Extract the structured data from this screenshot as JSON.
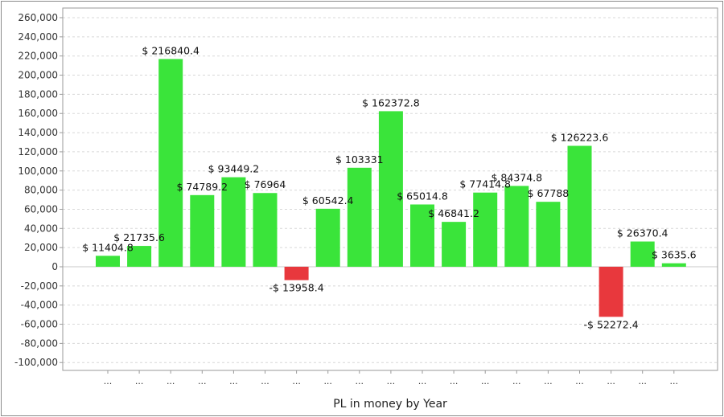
{
  "chart_data": {
    "type": "bar",
    "title": "",
    "xlabel": "PL in money by Year",
    "ylabel": "",
    "ylim": [
      -100000,
      260000
    ],
    "ytick_step": 20000,
    "categories": [
      "...",
      "...",
      "...",
      "...",
      "...",
      "...",
      "...",
      "...",
      "...",
      "...",
      "...",
      "...",
      "...",
      "...",
      "...",
      "...",
      "...",
      "...",
      "..."
    ],
    "values": [
      11404.8,
      21735.6,
      216840.4,
      74789.2,
      93449.2,
      76964,
      -13958.4,
      60542.4,
      103331,
      162372.8,
      65014.8,
      46841.2,
      77414.8,
      84374.8,
      67788,
      126223.6,
      -52272.4,
      26370.4,
      3635.6
    ],
    "value_labels": [
      "$ 11404.8",
      "$ 21735.6",
      "$ 216840.4",
      "$ 74789.2",
      "$ 93449.2",
      "$ 76964",
      "-$ 13958.4",
      "$ 60542.4",
      "$ 103331",
      "$ 162372.8",
      "$ 65014.8",
      "$ 46841.2",
      "$ 77414.8",
      "$ 84374.8",
      "$ 67788",
      "$ 126223.6",
      "-$ 52272.4",
      "$ 26370.4",
      "$ 3635.6"
    ],
    "grid": true,
    "colors": {
      "positive": "#3ae43a",
      "negative": "#e8383d",
      "grid": "#d8d8d8",
      "axis": "#9a9a9a"
    }
  }
}
